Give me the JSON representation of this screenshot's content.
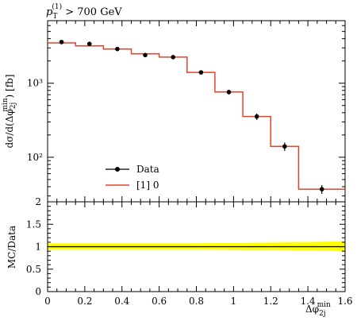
{
  "chart_data": [
    {
      "type": "line",
      "panel": "main",
      "title": "p_T^(1) > 700 GeV",
      "ylabel": "dσ/d(Δφ_2j^min) [fb]",
      "y_scale": "log",
      "ylim": [
        25,
        7000
      ],
      "y_major_ticks": [
        100,
        1000
      ],
      "y_tick_labels": [
        "10²",
        "10³"
      ],
      "xlim": [
        0,
        1.6
      ],
      "bin_edges": [
        0,
        0.15,
        0.3,
        0.45,
        0.6,
        0.75,
        0.9,
        1.05,
        1.2,
        1.35,
        1.6
      ],
      "series": [
        {
          "name": "Data",
          "style": "points",
          "color": "#000000",
          "x": [
            0.075,
            0.225,
            0.375,
            0.525,
            0.675,
            0.825,
            0.975,
            1.125,
            1.275,
            1.475
          ],
          "y": [
            3600,
            3400,
            2900,
            2400,
            2250,
            1400,
            760,
            355,
            140,
            37
          ],
          "yerr": [
            200,
            190,
            160,
            140,
            130,
            90,
            55,
            35,
            18,
            5
          ]
        },
        {
          "name": "[1] 0",
          "style": "step",
          "color": "#e8432a",
          "y": [
            3500,
            3200,
            2900,
            2500,
            2250,
            1400,
            760,
            355,
            140,
            37
          ]
        }
      ],
      "legend": "center-left"
    },
    {
      "type": "line",
      "panel": "ratio",
      "ylabel": "MC/Data",
      "xlabel": "Δφ_2j^min",
      "ylim": [
        0,
        2
      ],
      "y_ticks": [
        "0",
        "0.5",
        "1",
        "1.5",
        "2"
      ],
      "xlim": [
        0,
        1.6
      ],
      "x_ticks": [
        "0",
        "0.2",
        "0.4",
        "0.6",
        "0.8",
        "1",
        "1.2",
        "1.4",
        "1.6"
      ],
      "band_color": "#ffff00",
      "band_lo": [
        0.93,
        0.93,
        0.93,
        0.93,
        0.93,
        0.93,
        0.93,
        0.92,
        0.92,
        0.91,
        0.91,
        0.89
      ],
      "band_hi": [
        1.07,
        1.07,
        1.07,
        1.07,
        1.07,
        1.07,
        1.08,
        1.08,
        1.09,
        1.1,
        1.11,
        1.12
      ],
      "ratio_line": 1.0
    }
  ],
  "labels": {
    "title_main": "p",
    "title_sub": "T",
    "title_sup": "(1)",
    "title_rest": " > 700 GeV",
    "ylabel_main": "dσ/d(Δφ",
    "ylabel_sub": "2j",
    "ylabel_sup": "min",
    "ylabel_rest": ") [fb]",
    "ratio_ylabel": "MC/Data",
    "xlabel_main": "Δφ",
    "xlabel_sub": "2j",
    "xlabel_sup": "min",
    "legend_data": "Data",
    "legend_mc": "[1] 0"
  }
}
